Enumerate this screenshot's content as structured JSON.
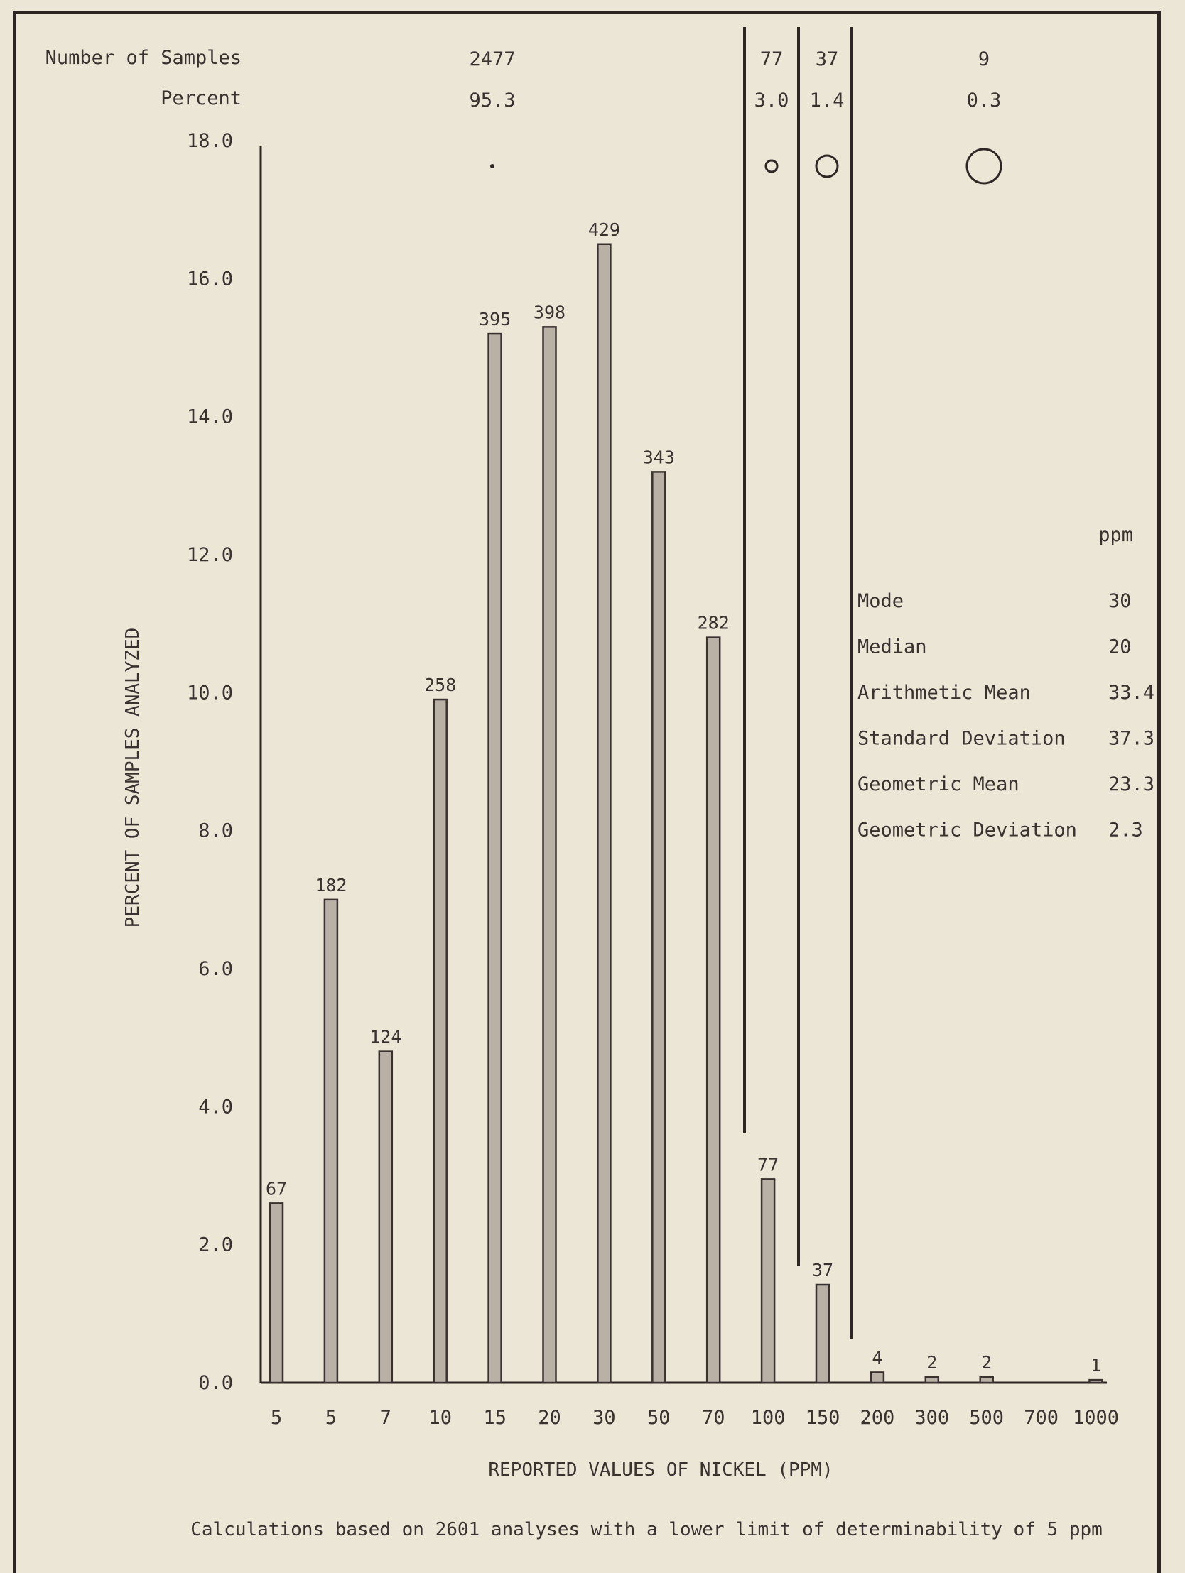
{
  "chart_data": {
    "type": "bar",
    "title": "",
    "xlabel": "REPORTED VALUES OF NICKEL (PPM)",
    "ylabel": "PERCENT OF SAMPLES ANALYZED",
    "footnote": "Calculations based on 2601 analyses with a lower limit of determinability of 5 ppm",
    "ylim": [
      0,
      18
    ],
    "yticks": [
      "0.0",
      "2.0",
      "4.0",
      "6.0",
      "8.0",
      "10.0",
      "12.0",
      "14.0",
      "16.0",
      "18.0"
    ],
    "categories": [
      "5",
      "5",
      "7",
      "10",
      "15",
      "20",
      "30",
      "50",
      "70",
      "100",
      "150",
      "200",
      "300",
      "500",
      "700",
      "1000"
    ],
    "counts": [
      "67",
      "182",
      "124",
      "258",
      "395",
      "398",
      "429",
      "343",
      "282",
      "77",
      "37",
      "4",
      "2",
      "2",
      "",
      "1"
    ],
    "values": [
      2.6,
      7.0,
      4.8,
      9.9,
      15.2,
      15.3,
      16.5,
      13.2,
      10.8,
      2.95,
      1.42,
      0.15,
      0.08,
      0.08,
      0,
      0.04
    ],
    "grid": false,
    "legend": "none",
    "bar_color": "#b9b0a6",
    "summary": {
      "row_labels": [
        "Number of Samples",
        "Percent"
      ],
      "groups": [
        {
          "count": "2477",
          "percent": "95.3",
          "symbol_size": 1
        },
        {
          "count": "77",
          "percent": "3.0",
          "symbol_size": 2
        },
        {
          "count": "37",
          "percent": "1.4",
          "symbol_size": 3
        },
        {
          "count": "9",
          "percent": "0.3",
          "symbol_size": 4
        }
      ]
    },
    "statistics": {
      "unit": "ppm",
      "rows": [
        {
          "label": "Mode",
          "value": "30"
        },
        {
          "label": "Median",
          "value": "20"
        },
        {
          "label": "Arithmetic Mean",
          "value": "33.4"
        },
        {
          "label": "Standard Deviation",
          "value": "37.3"
        },
        {
          "label": "Geometric Mean",
          "value": "23.3"
        },
        {
          "label": "Geometric Deviation",
          "value": "2.3"
        }
      ]
    }
  }
}
